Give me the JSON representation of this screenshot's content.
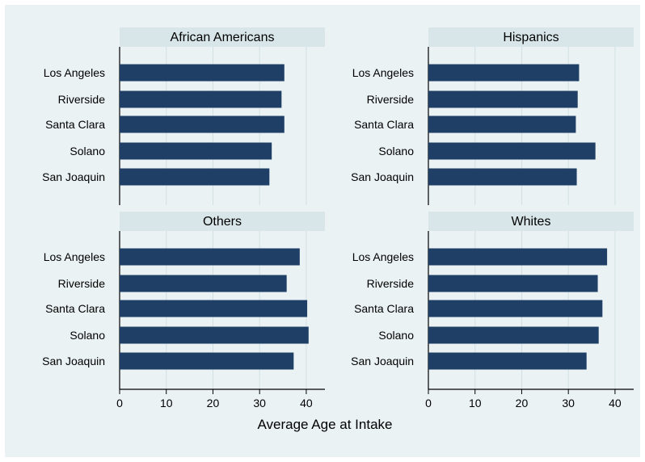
{
  "chart_data": {
    "type": "bar",
    "orientation": "horizontal",
    "categories": [
      "Los Angeles",
      "Riverside",
      "Santa Clara",
      "Solano",
      "San Joaquin"
    ],
    "xlabel": "Average Age at Intake",
    "xlim": [
      0,
      44
    ],
    "xticks": [
      0,
      10,
      20,
      30,
      40
    ],
    "grid": true,
    "colors": {
      "bar": "#1f3f66",
      "panel_header": "#d8e6ea",
      "background": "#eaf2f3",
      "grid": "#d3e0e3"
    },
    "panels": [
      {
        "title": "African Americans",
        "values": [
          35.3,
          34.7,
          35.3,
          32.6,
          32.1
        ]
      },
      {
        "title": "Hispanics",
        "values": [
          32.3,
          32.0,
          31.6,
          35.8,
          31.8
        ]
      },
      {
        "title": "Others",
        "values": [
          38.6,
          35.8,
          40.2,
          40.5,
          37.3
        ]
      },
      {
        "title": "Whites",
        "values": [
          38.3,
          36.3,
          37.3,
          36.5,
          33.9
        ]
      }
    ]
  }
}
